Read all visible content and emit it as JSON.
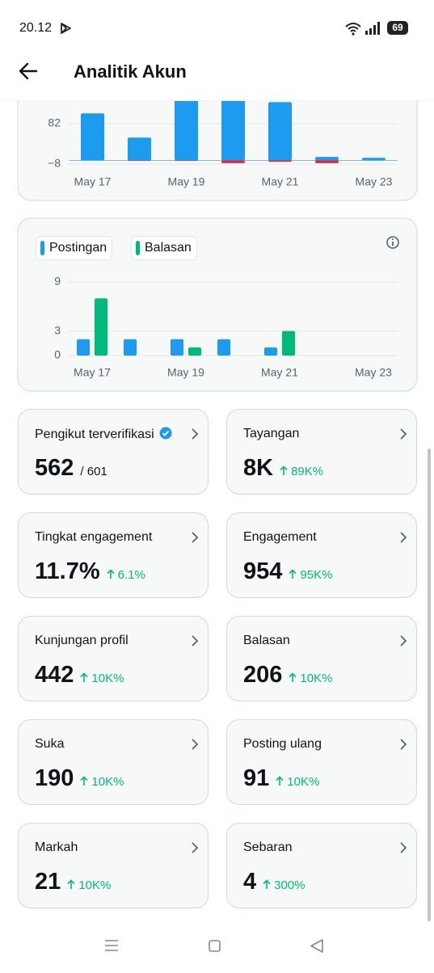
{
  "status_bar": {
    "time": "20.12",
    "battery": "69"
  },
  "header": {
    "title": "Analitik Akun"
  },
  "chart_data": [
    {
      "type": "bar",
      "categories": [
        "May 17",
        null,
        "May 19",
        null,
        "May 21",
        null,
        "May 23"
      ],
      "series": [
        {
          "color": "#1d9bf0",
          "values": [
            105,
            51,
            160,
            140,
            130,
            8,
            6
          ]
        },
        {
          "color": "#f4212e",
          "values": [
            0,
            -1,
            -1,
            -6,
            -3,
            -6,
            0
          ]
        }
      ],
      "ylim": [
        -8,
        172
      ],
      "yticks": [
        {
          "value": -8,
          "label": "−8"
        },
        82
      ],
      "grid": true
    },
    {
      "type": "bar",
      "categories": [
        "May 17",
        null,
        "May 19",
        null,
        "May 21",
        null,
        "May 23"
      ],
      "series": [
        {
          "name": "Postingan",
          "color": "#1d9bf0",
          "values": [
            2,
            2,
            2,
            2,
            1,
            0,
            0
          ]
        },
        {
          "name": "Balasan",
          "color": "#00ba7c",
          "values": [
            7,
            0,
            1,
            0,
            3,
            0,
            0
          ]
        }
      ],
      "ylim": [
        0,
        9
      ],
      "yticks": [
        0,
        3,
        9
      ],
      "grid": true,
      "legend": "top-left"
    }
  ],
  "stats": [
    {
      "label": "Pengikut terverifikasi",
      "value": "562",
      "total": "/ 601"
    },
    {
      "label": "Tayangan",
      "value": "8K",
      "change": "89K%"
    },
    {
      "label": "Tingkat engagement",
      "value": "11.7%",
      "change": "6.1%"
    },
    {
      "label": "Engagement",
      "value": "954",
      "change": "95K%"
    },
    {
      "label": "Kunjungan profil",
      "value": "442",
      "change": "10K%"
    },
    {
      "label": "Balasan",
      "value": "206",
      "change": "10K%"
    },
    {
      "label": "Suka",
      "value": "190",
      "change": "10K%"
    },
    {
      "label": "Posting ulang",
      "value": "91",
      "change": "10K%"
    },
    {
      "label": "Markah",
      "value": "21",
      "change": "10K%"
    },
    {
      "label": "Sebaran",
      "value": "4",
      "change": "300%"
    }
  ]
}
